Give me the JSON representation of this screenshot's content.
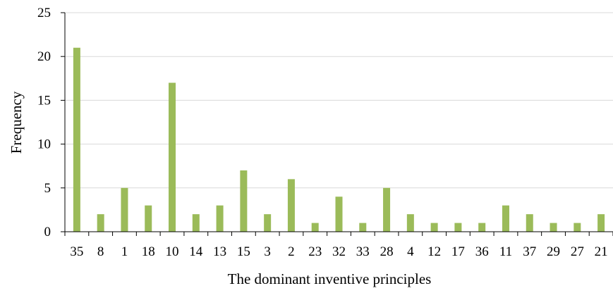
{
  "chart_data": {
    "type": "bar",
    "title": "",
    "xlabel": "The dominant inventive principles",
    "ylabel": "Frequency",
    "categories": [
      "35",
      "8",
      "1",
      "18",
      "10",
      "14",
      "13",
      "15",
      "3",
      "2",
      "23",
      "32",
      "33",
      "28",
      "4",
      "12",
      "17",
      "36",
      "11",
      "37",
      "29",
      "27",
      "21"
    ],
    "values": [
      21,
      2,
      5,
      3,
      17,
      2,
      3,
      7,
      2,
      6,
      1,
      4,
      1,
      5,
      2,
      1,
      1,
      1,
      3,
      2,
      1,
      1,
      2
    ],
    "ylim": [
      0,
      25
    ],
    "yticks": [
      0,
      5,
      10,
      15,
      20,
      25
    ],
    "grid": true,
    "legend": "none",
    "bar_color": "#9BBB59",
    "grid_color": "#D9D9D9"
  }
}
